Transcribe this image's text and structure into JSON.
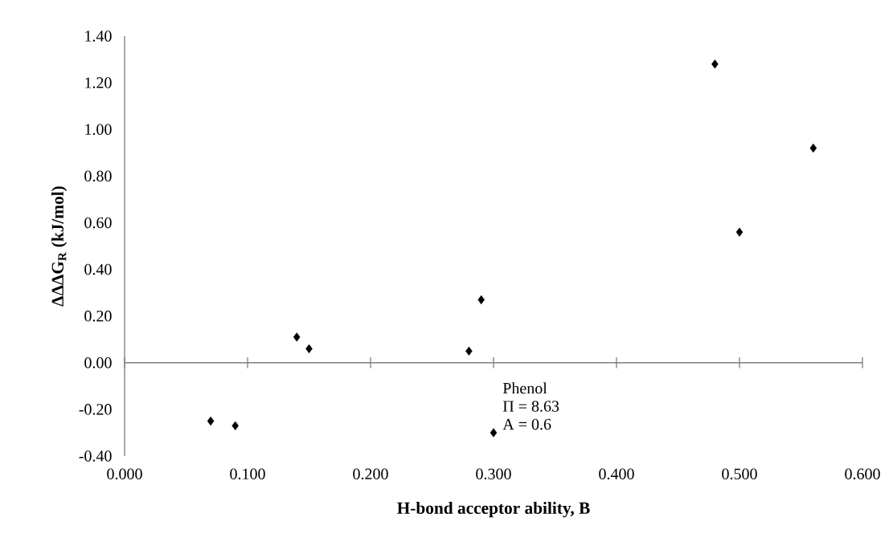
{
  "chart_data": {
    "type": "scatter",
    "xlabel": "H-bond acceptor ability, B",
    "ylabel": "ΔΔΔG$_{R}$ (kJ/mol)",
    "x": [
      0.07,
      0.09,
      0.14,
      0.15,
      0.28,
      0.29,
      0.3,
      0.48,
      0.5,
      0.56
    ],
    "values": [
      -0.25,
      -0.27,
      0.11,
      0.06,
      0.05,
      0.27,
      -0.3,
      1.28,
      0.56,
      0.92
    ],
    "color": "#000000",
    "marker": "diamond",
    "xlim": [
      0,
      0.6
    ],
    "ylim": [
      -0.4,
      1.4
    ],
    "xticks": [
      {
        "value": 0,
        "label": "0.000"
      },
      {
        "value": 0.1,
        "label": "0.100"
      },
      {
        "value": 0.2,
        "label": "0.200"
      },
      {
        "value": 0.3,
        "label": "0.300"
      },
      {
        "value": 0.4,
        "label": "0.400"
      },
      {
        "value": 0.5,
        "label": "0.500"
      },
      {
        "value": 0.6,
        "label": "0.600"
      }
    ],
    "yticks": [
      {
        "value": -0.4,
        "label": "-0.40"
      },
      {
        "value": -0.2,
        "label": "-0.20"
      },
      {
        "value": 0,
        "label": "0.00"
      },
      {
        "value": 0.2,
        "label": "0.20"
      },
      {
        "value": 0.4,
        "label": "0.40"
      },
      {
        "value": 0.6,
        "label": "0.60"
      },
      {
        "value": 0.8,
        "label": "0.80"
      },
      {
        "value": 1.0,
        "label": "1.00"
      },
      {
        "value": 1.2,
        "label": "1.20"
      },
      {
        "value": 1.4,
        "label": "1.40"
      }
    ],
    "annotations": [
      "Phenol",
      "Π = 8.63",
      "A = 0.6"
    ]
  }
}
